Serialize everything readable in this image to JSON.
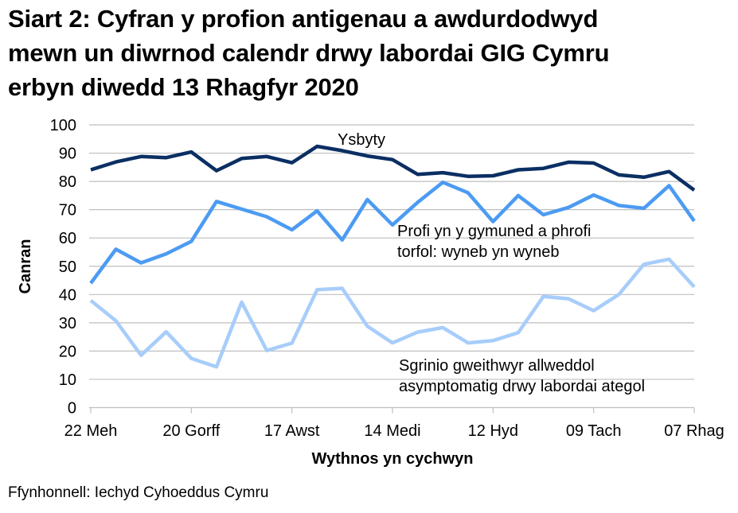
{
  "title_lines": [
    "Siart 2: Cyfran y profion antigenau a awdurdodwyd",
    "mewn un diwrnod calendr drwy labordai GIG Cymru",
    "erbyn diwedd 13 Rhagfyr 2020"
  ],
  "source": "Ffynhonnell: Iechyd Cyhoeddus Cymru",
  "colors": {
    "ysbyty": "#0B2F63",
    "cymuned": "#4C9BF2",
    "sgrinio": "#A7CDFA",
    "grid": "#BFBFBF"
  },
  "chart_data": {
    "type": "line",
    "title": "Siart 2: Cyfran y profion antigenau a awdurdodwyd mewn un diwrnod calendr drwy labordai GIG Cymru erbyn diwedd 13 Rhagfyr 2020",
    "xlabel": "Wythnos yn cychwyn",
    "ylabel": "Canran",
    "ylim": [
      0,
      100
    ],
    "yticks": [
      0,
      10,
      20,
      30,
      40,
      50,
      60,
      70,
      80,
      90,
      100
    ],
    "grid": true,
    "legend": "inline labels",
    "x_tick_labels": [
      {
        "index": 0,
        "label": "22 Meh"
      },
      {
        "index": 4,
        "label": "20 Gorff"
      },
      {
        "index": 8,
        "label": "17 Awst"
      },
      {
        "index": 12,
        "label": "14 Medi"
      },
      {
        "index": 16,
        "label": "12 Hyd"
      },
      {
        "index": 20,
        "label": "09 Tach"
      },
      {
        "index": 24,
        "label": "07 Rhag"
      }
    ],
    "x": [
      "22 Meh",
      "29 Meh",
      "06 Gorff",
      "13 Gorff",
      "20 Gorff",
      "27 Gorff",
      "03 Awst",
      "10 Awst",
      "17 Awst",
      "24 Awst",
      "31 Awst",
      "07 Medi",
      "14 Medi",
      "21 Medi",
      "28 Medi",
      "05 Hyd",
      "12 Hyd",
      "19 Hyd",
      "26 Hyd",
      "02 Tach",
      "09 Tach",
      "16 Tach",
      "23 Tach",
      "30 Tach",
      "07 Rhag"
    ],
    "series": [
      {
        "name": "Ysbyty",
        "color_key": "ysbyty",
        "label_lines": [
          "Ysbyty"
        ],
        "label_pos": [
          424,
          182
        ],
        "values": [
          84.1,
          86.9,
          88.8,
          88.4,
          90.4,
          83.8,
          88.1,
          88.8,
          86.6,
          92.4,
          90.9,
          89.0,
          87.7,
          82.5,
          83.1,
          81.8,
          82.0,
          84.1,
          84.6,
          86.8,
          86.5,
          82.3,
          81.5,
          83.5,
          76.9
        ]
      },
      {
        "name": "Profi yn y gymuned a phrofi torfol: wyneb yn wyneb",
        "color_key": "cymuned",
        "label_lines": [
          "Profi yn y gymuned a phrofi",
          "torfol: wyneb yn wyneb"
        ],
        "label_pos": [
          499,
          297
        ],
        "values": [
          44.0,
          56.0,
          51.2,
          54.4,
          58.8,
          72.9,
          70.2,
          67.5,
          62.9,
          69.6,
          59.3,
          73.6,
          64.6,
          72.6,
          79.7,
          76.0,
          65.8,
          75.0,
          68.2,
          70.8,
          75.2,
          71.5,
          70.5,
          78.5,
          66.0
        ]
      },
      {
        "name": "Sgrinio gweithwyr allweddol asymptomatig drwy labordai ategol",
        "color_key": "sgrinio",
        "label_lines": [
          "Sgrinio gweithwyr allweddol",
          "asymptomatig drwy labordai ategol"
        ],
        "label_pos": [
          501,
          466
        ],
        "values": [
          37.9,
          30.7,
          18.5,
          26.8,
          17.4,
          14.4,
          37.3,
          20.2,
          22.8,
          41.7,
          42.2,
          28.8,
          22.9,
          26.7,
          28.3,
          22.9,
          23.7,
          26.5,
          39.3,
          38.5,
          34.3,
          40.0,
          50.7,
          52.5,
          42.7
        ]
      }
    ]
  }
}
